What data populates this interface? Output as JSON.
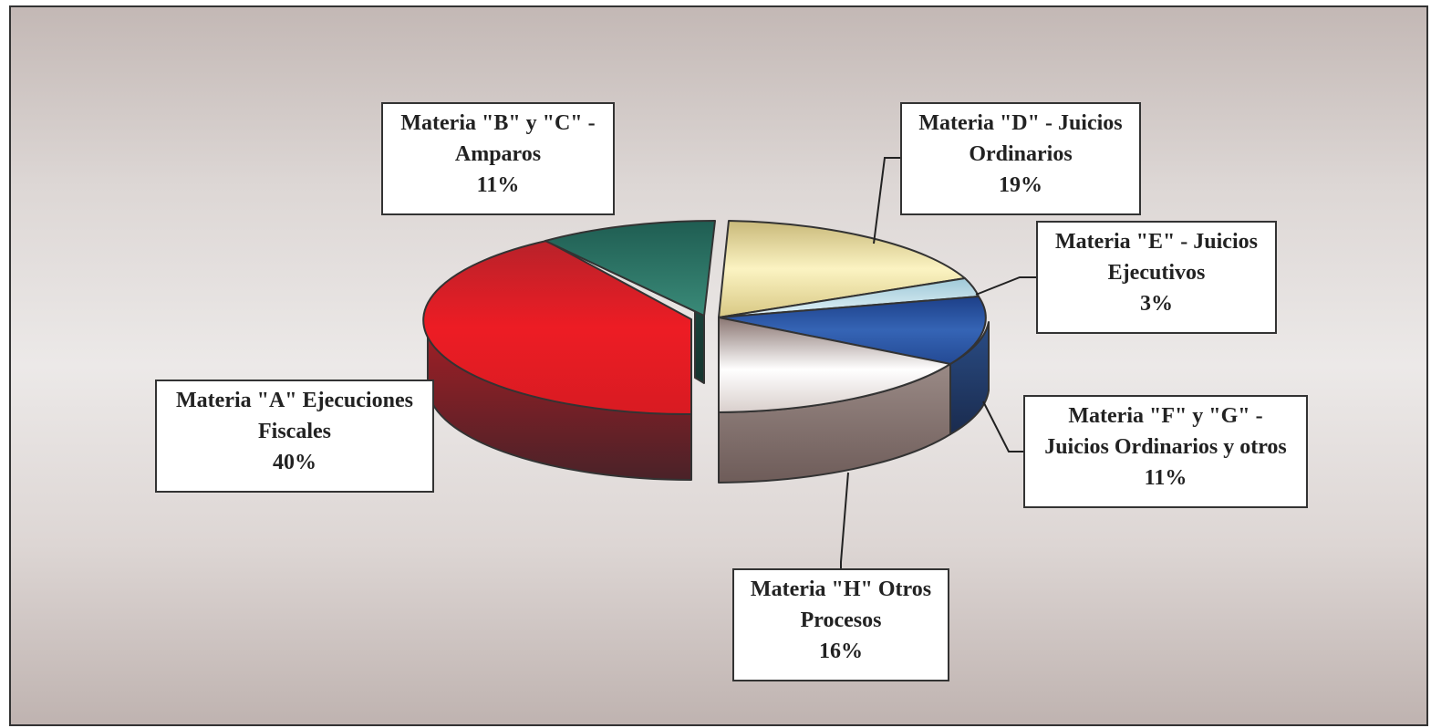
{
  "chart_data": {
    "type": "pie",
    "title": "",
    "three_d": true,
    "slices": [
      {
        "name": "Materia \"A\" Ejecuciones Fiscales",
        "line1": "Materia \"A\" Ejecuciones",
        "line2": "Fiscales",
        "value": 40,
        "label": "40%",
        "color": "#e31b23",
        "exploded": true
      },
      {
        "name": "Materia \"B\" y \"C\" - Amparos",
        "line1": "Materia \"B\" y \"C\" -",
        "line2": "Amparos",
        "value": 11,
        "label": "11%",
        "color": "#2e7a6a",
        "exploded": true
      },
      {
        "name": "Materia \"D\" - Juicios Ordinarios",
        "line1": "Materia \"D\" - Juicios",
        "line2": "Ordinarios",
        "value": 19,
        "label": "19%",
        "color": "#f1e6a8",
        "exploded": false
      },
      {
        "name": "Materia \"E\" - Juicios Ejecutivos",
        "line1": "Materia \"E\" - Juicios",
        "line2": "Ejecutivos",
        "value": 3,
        "label": "3%",
        "color": "#cce8f2",
        "exploded": false
      },
      {
        "name": "Materia \"F\" y \"G\" - Juicios Ordinarios y otros",
        "line1": "Materia \"F\" y \"G\" -",
        "line2": "Juicios Ordinarios y otros",
        "value": 11,
        "label": "11%",
        "color": "#2e5aa8",
        "exploded": false
      },
      {
        "name": "Materia \"H\" Otros Procesos",
        "line1": "Materia \"H\" Otros",
        "line2": "Procesos",
        "value": 16,
        "label": "16%",
        "color": "#f6f2f0",
        "exploded": false
      }
    ]
  }
}
